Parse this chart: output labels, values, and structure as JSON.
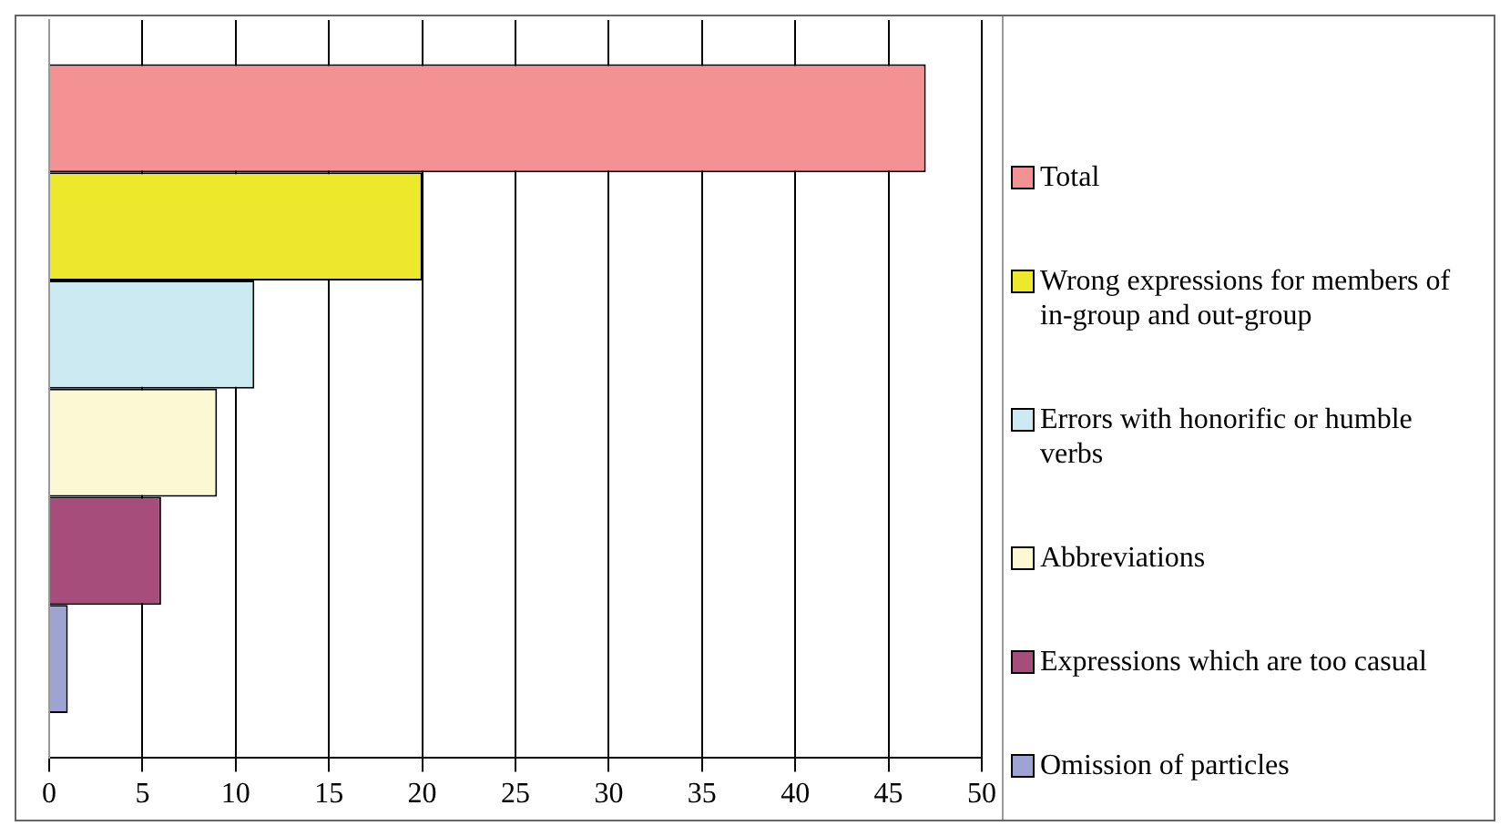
{
  "chart_data": {
    "type": "bar",
    "orientation": "horizontal",
    "categories": [
      null
    ],
    "series": [
      {
        "name": "Total",
        "color": "#f39193",
        "values": [
          47
        ]
      },
      {
        "name": "Wrong expressions for members of in-group and out-group",
        "color": "#ede82c",
        "values": [
          20
        ]
      },
      {
        "name": "Errors with honorific or humble verbs",
        "color": "#cceaf1",
        "values": [
          11
        ]
      },
      {
        "name": "Abbreviations",
        "color": "#fbf8d3",
        "values": [
          9
        ]
      },
      {
        "name": "Expressions which are too casual",
        "color": "#a64d7c",
        "values": [
          6
        ]
      },
      {
        "name": "Omission of particles",
        "color": "#9fa3d3",
        "values": [
          1
        ]
      }
    ],
    "xlim": [
      0,
      50
    ],
    "xticks": [
      0,
      5,
      10,
      15,
      20,
      25,
      30,
      35,
      40,
      45,
      50
    ],
    "grid": "x",
    "legend": "right",
    "tick_labels": "x"
  }
}
